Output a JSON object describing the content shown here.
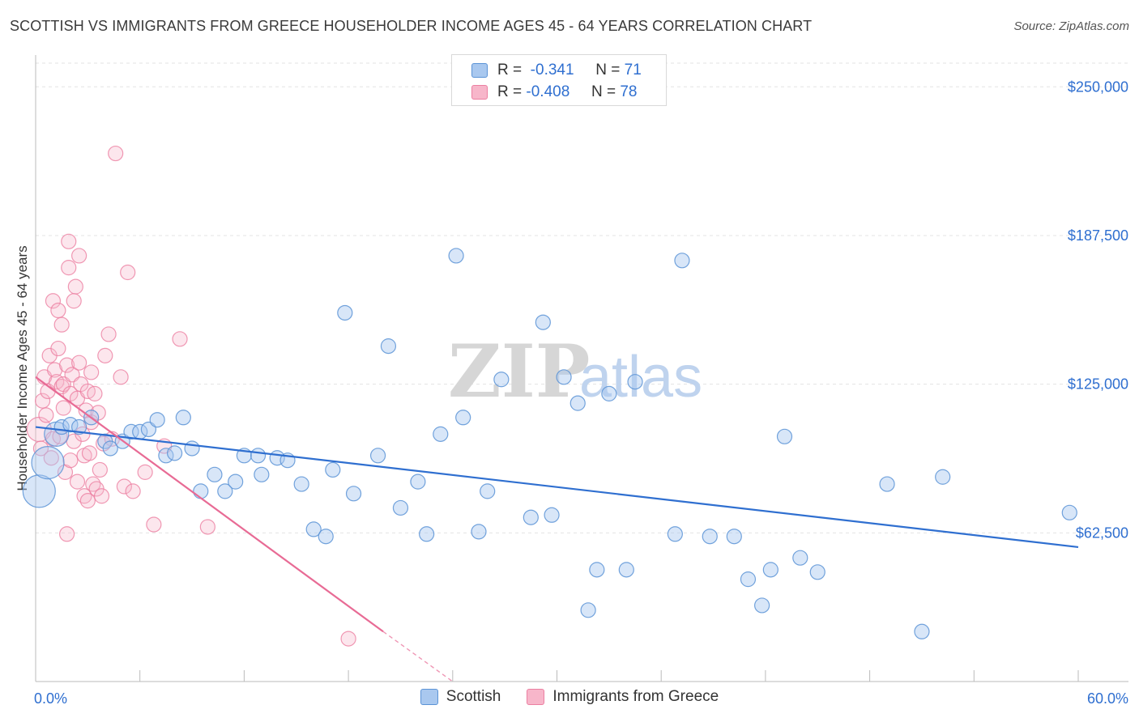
{
  "header": {
    "title": "SCOTTISH VS IMMIGRANTS FROM GREECE HOUSEHOLDER INCOME AGES 45 - 64 YEARS CORRELATION CHART",
    "source": "Source: ZipAtlas.com"
  },
  "watermark": {
    "zip": "ZIP",
    "atlas": "atlas"
  },
  "legend": {
    "rows": [
      {
        "r_label": "R =",
        "r_value": "-0.341",
        "n_label": "N =",
        "n_value": "71"
      },
      {
        "r_label": "R =",
        "r_value": "-0.408",
        "n_label": "N =",
        "n_value": "78"
      }
    ]
  },
  "colors": {
    "scottish_fill": "#a9c8ef",
    "scottish_stroke": "#5b93d6",
    "scottish_line": "#2f6fd0",
    "greece_fill": "#f7b6ca",
    "greece_stroke": "#ec7fa1",
    "greece_line": "#e86b95",
    "axis_text": "#2f6fd0",
    "grid": "#e3e3e3"
  },
  "chart_data": {
    "type": "scatter",
    "title": "SCOTTISH VS IMMIGRANTS FROM GREECE HOUSEHOLDER INCOME AGES 45 - 64 YEARS CORRELATION CHART",
    "xlabel": "",
    "ylabel": "Householder Income Ages 45 - 64 years",
    "xlim": [
      0,
      60
    ],
    "ylim": [
      0,
      262000
    ],
    "x_tick_labels": [
      "0.0%",
      "60.0%"
    ],
    "y_ticks": [
      62500,
      125000,
      187500,
      250000
    ],
    "y_tick_labels": [
      "$62,500",
      "$125,000",
      "$187,500",
      "$250,000"
    ],
    "grid": true,
    "legend_position": "top-center",
    "series": [
      {
        "name": "Scottish",
        "r": -0.341,
        "n": 71,
        "trend": {
          "x": [
            0,
            60
          ],
          "y": [
            107000,
            56500
          ]
        },
        "points": [
          [
            0.2,
            80000,
            3
          ],
          [
            0.7,
            92000,
            3
          ],
          [
            1.2,
            104000,
            2
          ],
          [
            1.5,
            107000,
            1
          ],
          [
            2.0,
            108000,
            1
          ],
          [
            2.5,
            107000,
            1
          ],
          [
            3.2,
            111000,
            1
          ],
          [
            4.0,
            101000,
            1
          ],
          [
            4.3,
            98000,
            1
          ],
          [
            5.0,
            101000,
            1
          ],
          [
            5.5,
            105000,
            1
          ],
          [
            6.0,
            105000,
            1
          ],
          [
            6.5,
            106000,
            1
          ],
          [
            7.0,
            110000,
            1
          ],
          [
            7.5,
            95000,
            1
          ],
          [
            8.0,
            96000,
            1
          ],
          [
            8.5,
            111000,
            1
          ],
          [
            9.0,
            98000,
            1
          ],
          [
            9.5,
            80000,
            1
          ],
          [
            10.3,
            87000,
            1
          ],
          [
            10.9,
            80000,
            1
          ],
          [
            11.5,
            84000,
            1
          ],
          [
            12.0,
            95000,
            1
          ],
          [
            12.8,
            95000,
            1
          ],
          [
            13.0,
            87000,
            1
          ],
          [
            13.9,
            94000,
            1
          ],
          [
            14.5,
            93000,
            1
          ],
          [
            15.3,
            83000,
            1
          ],
          [
            16.0,
            64000,
            1
          ],
          [
            16.7,
            61000,
            1
          ],
          [
            17.1,
            89000,
            1
          ],
          [
            17.8,
            155000,
            1
          ],
          [
            18.3,
            79000,
            1
          ],
          [
            19.7,
            95000,
            1
          ],
          [
            20.3,
            141000,
            1
          ],
          [
            21.0,
            73000,
            1
          ],
          [
            22.0,
            84000,
            1
          ],
          [
            22.5,
            62000,
            1
          ],
          [
            23.3,
            104000,
            1
          ],
          [
            24.2,
            179000,
            1
          ],
          [
            24.6,
            111000,
            1
          ],
          [
            25.5,
            63000,
            1
          ],
          [
            26.0,
            80000,
            1
          ],
          [
            26.8,
            127000,
            1
          ],
          [
            28.5,
            69000,
            1
          ],
          [
            29.2,
            151000,
            1
          ],
          [
            29.7,
            70000,
            1
          ],
          [
            30.4,
            128000,
            1
          ],
          [
            31.2,
            117000,
            1
          ],
          [
            31.8,
            30000,
            1
          ],
          [
            32.3,
            47000,
            1
          ],
          [
            33.0,
            121000,
            1
          ],
          [
            34.0,
            47000,
            1
          ],
          [
            34.5,
            126000,
            1
          ],
          [
            36.8,
            62000,
            1
          ],
          [
            37.2,
            177000,
            1
          ],
          [
            38.8,
            61000,
            1
          ],
          [
            40.2,
            61000,
            1
          ],
          [
            41.0,
            43000,
            1
          ],
          [
            41.8,
            32000,
            1
          ],
          [
            42.3,
            47000,
            1
          ],
          [
            43.1,
            103000,
            1
          ],
          [
            44.0,
            52000,
            1
          ],
          [
            45.0,
            46000,
            1
          ],
          [
            49.0,
            83000,
            1
          ],
          [
            51.0,
            21000,
            1
          ],
          [
            52.2,
            86000,
            1
          ],
          [
            59.5,
            71000,
            1
          ]
        ]
      },
      {
        "name": "Immigrants from Greece",
        "r": -0.408,
        "n": 78,
        "trend": {
          "x": [
            0,
            20
          ],
          "y": [
            128000,
            21000
          ]
        },
        "trend_dashed": {
          "x": [
            20,
            24
          ],
          "y": [
            21000,
            0
          ]
        },
        "points": [
          [
            0.2,
            106000,
            2
          ],
          [
            0.3,
            98000,
            1
          ],
          [
            0.4,
            118000,
            1
          ],
          [
            0.5,
            128000,
            1
          ],
          [
            0.6,
            112000,
            1
          ],
          [
            0.7,
            122000,
            1
          ],
          [
            0.8,
            137000,
            1
          ],
          [
            0.9,
            94000,
            1
          ],
          [
            1.0,
            102000,
            1
          ],
          [
            1.0,
            160000,
            1
          ],
          [
            1.1,
            131000,
            1
          ],
          [
            1.2,
            126000,
            1
          ],
          [
            1.3,
            140000,
            1
          ],
          [
            1.3,
            156000,
            1
          ],
          [
            1.4,
            103000,
            1
          ],
          [
            1.5,
            124000,
            1
          ],
          [
            1.5,
            150000,
            1
          ],
          [
            1.6,
            115000,
            1
          ],
          [
            1.6,
            125000,
            1
          ],
          [
            1.7,
            88000,
            1
          ],
          [
            1.8,
            62000,
            1
          ],
          [
            1.8,
            133000,
            1
          ],
          [
            1.9,
            174000,
            1
          ],
          [
            1.9,
            185000,
            1
          ],
          [
            2.0,
            121000,
            1
          ],
          [
            2.0,
            93000,
            1
          ],
          [
            2.1,
            129000,
            1
          ],
          [
            2.2,
            160000,
            1
          ],
          [
            2.2,
            101000,
            1
          ],
          [
            2.3,
            166000,
            1
          ],
          [
            2.4,
            119000,
            1
          ],
          [
            2.4,
            84000,
            1
          ],
          [
            2.5,
            179000,
            1
          ],
          [
            2.5,
            134000,
            1
          ],
          [
            2.6,
            125000,
            1
          ],
          [
            2.7,
            104000,
            1
          ],
          [
            2.8,
            95000,
            1
          ],
          [
            2.8,
            78000,
            1
          ],
          [
            2.9,
            114000,
            1
          ],
          [
            3.0,
            122000,
            1
          ],
          [
            3.0,
            76000,
            1
          ],
          [
            3.1,
            96000,
            1
          ],
          [
            3.2,
            109000,
            1
          ],
          [
            3.2,
            130000,
            1
          ],
          [
            3.3,
            83000,
            1
          ],
          [
            3.4,
            121000,
            1
          ],
          [
            3.5,
            81000,
            1
          ],
          [
            3.6,
            113000,
            1
          ],
          [
            3.7,
            89000,
            1
          ],
          [
            3.8,
            78000,
            1
          ],
          [
            3.9,
            100000,
            1
          ],
          [
            4.0,
            137000,
            1
          ],
          [
            4.2,
            146000,
            1
          ],
          [
            4.4,
            102000,
            1
          ],
          [
            4.6,
            222000,
            1
          ],
          [
            4.9,
            128000,
            1
          ],
          [
            5.1,
            82000,
            1
          ],
          [
            5.3,
            172000,
            1
          ],
          [
            5.6,
            80000,
            1
          ],
          [
            6.3,
            88000,
            1
          ],
          [
            6.8,
            66000,
            1
          ],
          [
            7.4,
            99000,
            1
          ],
          [
            8.3,
            144000,
            1
          ],
          [
            9.9,
            65000,
            1
          ],
          [
            18.0,
            18000,
            1
          ]
        ]
      }
    ]
  },
  "bottom_legend": [
    {
      "label": "Scottish"
    },
    {
      "label": "Immigrants from Greece"
    }
  ]
}
